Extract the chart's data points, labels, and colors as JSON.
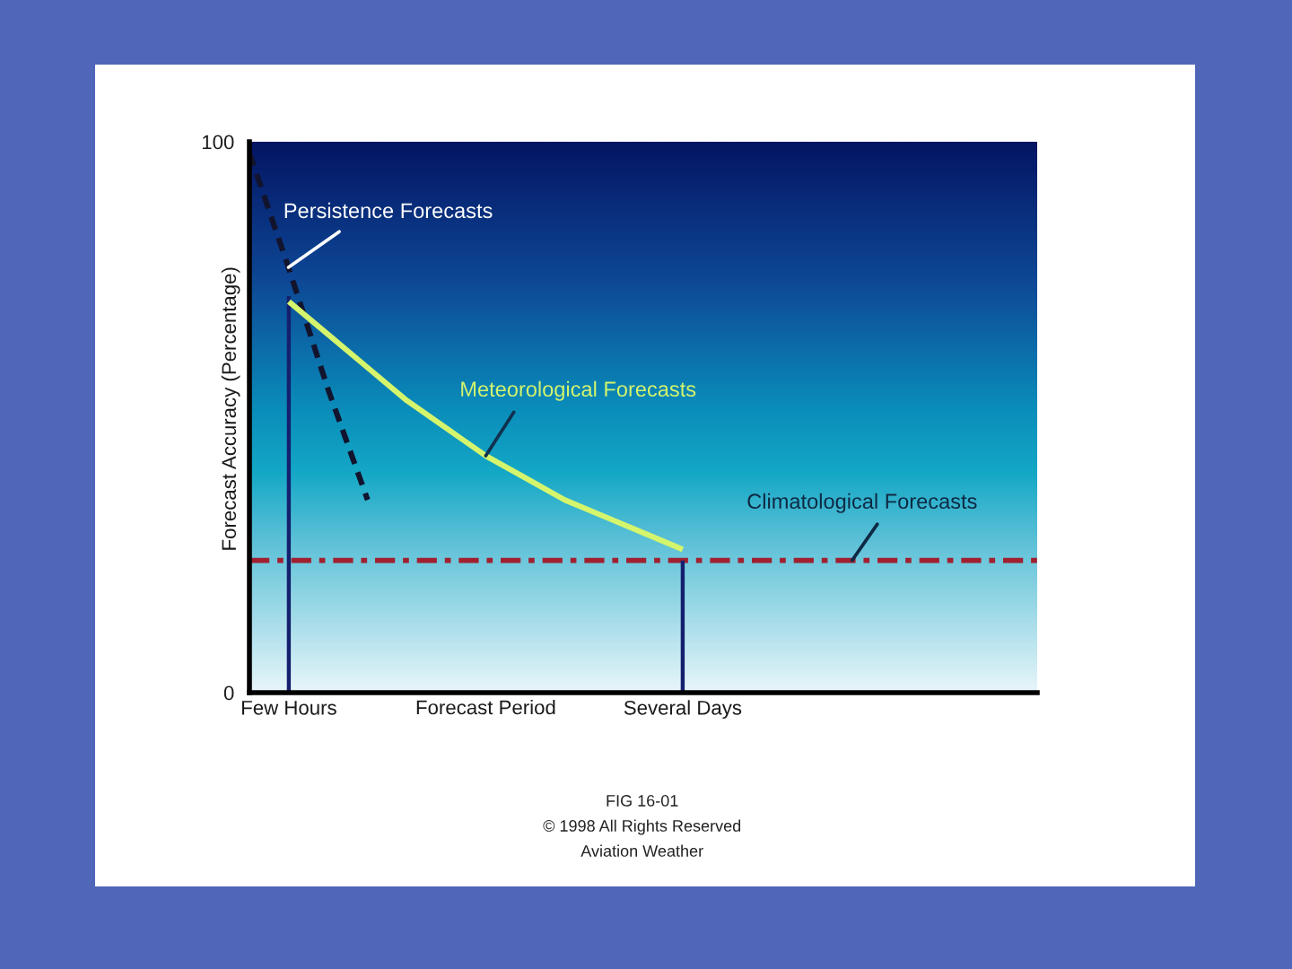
{
  "chart_data": {
    "type": "line",
    "xlabel": "Forecast Period",
    "ylabel": "Forecast Accuracy (Percentage)",
    "categories": [
      null,
      "Few Hours",
      null,
      null,
      null,
      null,
      null,
      null,
      null,
      null,
      null,
      "Several Days",
      null,
      null,
      null,
      null,
      null,
      null,
      null,
      null,
      null
    ],
    "ylim": [
      0,
      100
    ],
    "yticks": [
      0,
      100
    ],
    "series": [
      {
        "name": "Persistence Forecasts",
        "color": "#12142e",
        "line_style": "dashed",
        "values": [
          98,
          77,
          55,
          35,
          null,
          null,
          null,
          null,
          null,
          null,
          null,
          null,
          null,
          null,
          null,
          null,
          null,
          null,
          null,
          null,
          null
        ]
      },
      {
        "name": "Meteorological Forecasts",
        "color": "#d4f56c",
        "values": [
          null,
          71,
          65,
          59,
          53,
          48,
          43,
          39,
          35,
          32,
          29,
          26,
          null,
          null,
          null,
          null,
          null,
          null,
          null,
          null,
          null
        ]
      },
      {
        "type": "bar",
        "color": "#14206e",
        "values": [
          null,
          72,
          null,
          null,
          null,
          null,
          null,
          null,
          null,
          null,
          null,
          24,
          null,
          null,
          null,
          null,
          null,
          null,
          null,
          null,
          null
        ]
      }
    ],
    "ref_lines": [
      {
        "axis": "y",
        "value": 24,
        "label": "Climatological Forecasts",
        "color": "#a02030",
        "line_style": "dashdot"
      }
    ],
    "annotations": [
      "FIG 16-01",
      "© 1998 All Rights Reserved",
      "Aviation Weather"
    ]
  }
}
